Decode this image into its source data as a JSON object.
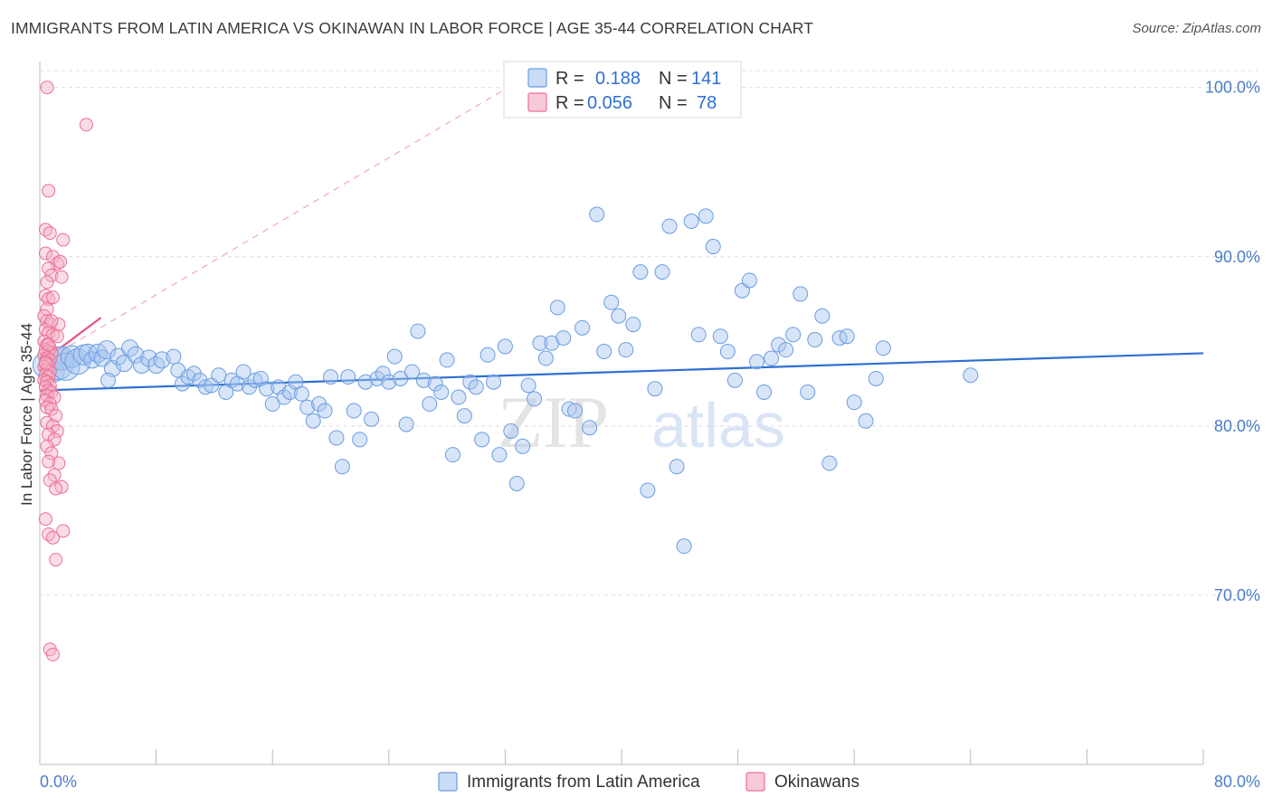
{
  "title": "IMMIGRANTS FROM LATIN AMERICA VS OKINAWAN IN LABOR FORCE | AGE 35-44 CORRELATION CHART",
  "source": "Source: ZipAtlas.com",
  "colors": {
    "blue": "#6a9de0",
    "blue_fill": "#a9c6f0",
    "blue_line": "#2f6fd1",
    "pink": "#ec6f96",
    "pink_fill": "#f4b1c6",
    "pink_line": "#e84f7f",
    "axis_text": "#4a7cc9",
    "grid": "#dcdcdc"
  },
  "legend": {
    "r_label": "R =",
    "n_label": "N =",
    "series": [
      {
        "name": "Immigrants from Latin America",
        "r": "0.188",
        "n": "141"
      },
      {
        "name": "Okinawans",
        "r": "0.056",
        "n": "78"
      }
    ]
  },
  "watermark": {
    "zip": "ZIP",
    "atlas": "atlas"
  },
  "chart_data": {
    "type": "scatter",
    "title": "IMMIGRANTS FROM LATIN AMERICA VS OKINAWAN IN LABOR FORCE | AGE 35-44 CORRELATION CHART",
    "xlabel": "",
    "ylabel": "In Labor Force | Age 35-44",
    "xlim": [
      0,
      80
    ],
    "ylim": [
      60,
      101
    ],
    "x_tick_labels": [
      "0.0%",
      "80.0%"
    ],
    "y_ticks": [
      70,
      80,
      90,
      100
    ],
    "y_tick_labels": [
      "70.0%",
      "80.0%",
      "90.0%",
      "100.0%"
    ],
    "grid": true,
    "legend_position": "top-center",
    "series": [
      {
        "name": "Immigrants from Latin America",
        "r": 0.188,
        "n": 141,
        "trend": [
          [
            0,
            82.1
          ],
          [
            80,
            84.3
          ]
        ],
        "points": [
          [
            0.4,
            83.6,
            14
          ],
          [
            0.8,
            83.9,
            12
          ],
          [
            1.0,
            83.2,
            11
          ],
          [
            1.2,
            83.7,
            18
          ],
          [
            1.5,
            84.0,
            13
          ],
          [
            1.8,
            83.5,
            15
          ],
          [
            2.2,
            84.1,
            12
          ],
          [
            2.6,
            83.8,
            14
          ],
          [
            3.0,
            84.2,
            11
          ],
          [
            3.3,
            84.3,
            10
          ],
          [
            3.6,
            83.9,
            9
          ],
          [
            4.0,
            84.3,
            10
          ],
          [
            4.3,
            84.0,
            9
          ],
          [
            4.6,
            84.5,
            10
          ],
          [
            5.0,
            83.4,
            9
          ],
          [
            5.4,
            84.1,
            9
          ],
          [
            5.8,
            83.7,
            9
          ],
          [
            6.2,
            84.6,
            9
          ],
          [
            6.6,
            84.2,
            9
          ],
          [
            7.0,
            83.6,
            9
          ],
          [
            7.5,
            84.0,
            9
          ],
          [
            8.0,
            83.6,
            9
          ],
          [
            8.4,
            83.9,
            9
          ],
          [
            9.2,
            84.1,
            8
          ],
          [
            4.7,
            82.7,
            8
          ],
          [
            9.5,
            83.3,
            8
          ],
          [
            9.8,
            82.5,
            8
          ],
          [
            10.2,
            82.9,
            8
          ],
          [
            10.6,
            83.1,
            8
          ],
          [
            11.0,
            82.7,
            8
          ],
          [
            11.4,
            82.3,
            8
          ],
          [
            11.8,
            82.4,
            8
          ],
          [
            12.3,
            83.0,
            8
          ],
          [
            12.8,
            82.0,
            8
          ],
          [
            13.2,
            82.7,
            8
          ],
          [
            13.6,
            82.5,
            8
          ],
          [
            14.0,
            83.2,
            8
          ],
          [
            14.4,
            82.3,
            8
          ],
          [
            14.8,
            82.7,
            8
          ],
          [
            15.2,
            82.8,
            8
          ],
          [
            15.6,
            82.2,
            8
          ],
          [
            16.0,
            81.3,
            8
          ],
          [
            16.4,
            82.3,
            8
          ],
          [
            16.8,
            81.7,
            8
          ],
          [
            17.2,
            82.0,
            8
          ],
          [
            17.6,
            82.6,
            8
          ],
          [
            18.0,
            81.9,
            8
          ],
          [
            18.4,
            81.1,
            8
          ],
          [
            18.8,
            80.3,
            8
          ],
          [
            19.2,
            81.3,
            8
          ],
          [
            19.6,
            80.9,
            8
          ],
          [
            20.0,
            82.9,
            8
          ],
          [
            20.4,
            79.3,
            8
          ],
          [
            20.8,
            77.6,
            8
          ],
          [
            21.2,
            82.9,
            8
          ],
          [
            21.6,
            80.9,
            8
          ],
          [
            22.0,
            79.2,
            8
          ],
          [
            22.4,
            82.6,
            8
          ],
          [
            22.8,
            80.4,
            8
          ],
          [
            23.2,
            82.8,
            8
          ],
          [
            23.6,
            83.1,
            8
          ],
          [
            24.0,
            82.6,
            8
          ],
          [
            24.4,
            84.1,
            8
          ],
          [
            24.8,
            82.8,
            8
          ],
          [
            25.2,
            80.1,
            8
          ],
          [
            25.6,
            83.2,
            8
          ],
          [
            26.0,
            85.6,
            8
          ],
          [
            26.4,
            82.7,
            8
          ],
          [
            26.8,
            81.3,
            8
          ],
          [
            27.2,
            82.5,
            8
          ],
          [
            27.6,
            82.0,
            8
          ],
          [
            28.0,
            83.9,
            8
          ],
          [
            28.4,
            78.3,
            8
          ],
          [
            28.8,
            81.7,
            8
          ],
          [
            29.2,
            80.6,
            8
          ],
          [
            29.6,
            82.6,
            8
          ],
          [
            30.0,
            82.3,
            8
          ],
          [
            30.4,
            79.2,
            8
          ],
          [
            30.8,
            84.2,
            8
          ],
          [
            31.2,
            82.6,
            8
          ],
          [
            31.6,
            78.3,
            8
          ],
          [
            32.0,
            84.7,
            8
          ],
          [
            32.4,
            79.7,
            8
          ],
          [
            32.8,
            76.6,
            8
          ],
          [
            33.2,
            78.8,
            8
          ],
          [
            33.6,
            82.4,
            8
          ],
          [
            34.0,
            81.6,
            8
          ],
          [
            34.4,
            84.9,
            8
          ],
          [
            34.8,
            84.0,
            8
          ],
          [
            35.2,
            84.9,
            8
          ],
          [
            35.6,
            87.0,
            8
          ],
          [
            36.0,
            85.2,
            8
          ],
          [
            36.4,
            81.0,
            8
          ],
          [
            36.8,
            80.9,
            8
          ],
          [
            37.3,
            85.8,
            8
          ],
          [
            37.8,
            79.9,
            8
          ],
          [
            38.3,
            92.5,
            8
          ],
          [
            38.8,
            84.4,
            8
          ],
          [
            39.3,
            87.3,
            8
          ],
          [
            39.8,
            86.5,
            8
          ],
          [
            40.3,
            84.5,
            8
          ],
          [
            40.8,
            86.0,
            8
          ],
          [
            41.3,
            89.1,
            8
          ],
          [
            41.8,
            76.2,
            8
          ],
          [
            42.3,
            82.2,
            8
          ],
          [
            42.8,
            89.1,
            8
          ],
          [
            43.3,
            91.8,
            8
          ],
          [
            43.8,
            77.6,
            8
          ],
          [
            44.3,
            72.9,
            8
          ],
          [
            44.8,
            92.1,
            8
          ],
          [
            45.3,
            85.4,
            8
          ],
          [
            45.8,
            92.4,
            8
          ],
          [
            46.3,
            90.6,
            8
          ],
          [
            46.8,
            85.3,
            8
          ],
          [
            47.3,
            84.4,
            8
          ],
          [
            47.8,
            82.7,
            8
          ],
          [
            48.3,
            88.0,
            8
          ],
          [
            48.8,
            88.6,
            8
          ],
          [
            49.3,
            83.8,
            8
          ],
          [
            49.8,
            82.0,
            8
          ],
          [
            50.3,
            84.0,
            8
          ],
          [
            50.8,
            84.8,
            8
          ],
          [
            51.3,
            84.5,
            8
          ],
          [
            51.8,
            85.4,
            8
          ],
          [
            52.3,
            87.8,
            8
          ],
          [
            52.8,
            82.0,
            8
          ],
          [
            53.3,
            85.1,
            8
          ],
          [
            53.8,
            86.5,
            8
          ],
          [
            54.3,
            77.8,
            8
          ],
          [
            55.0,
            85.2,
            8
          ],
          [
            55.5,
            85.3,
            8
          ],
          [
            56.0,
            81.4,
            8
          ],
          [
            56.8,
            80.3,
            8
          ],
          [
            57.5,
            82.8,
            8
          ],
          [
            58.0,
            84.6,
            8
          ],
          [
            64.0,
            83.0,
            8
          ]
        ]
      },
      {
        "name": "Okinawans",
        "r": 0.056,
        "n": 78,
        "trend": [
          [
            0,
            83.7
          ],
          [
            4.2,
            86.4
          ]
        ],
        "trend_ext": [
          [
            0,
            83.7
          ],
          [
            32.2,
            100.0
          ]
        ],
        "points": [
          [
            0.5,
            100.0
          ],
          [
            3.2,
            97.8
          ],
          [
            0.6,
            93.9
          ],
          [
            0.4,
            91.6
          ],
          [
            0.7,
            91.4
          ],
          [
            1.6,
            91.0
          ],
          [
            0.4,
            90.2
          ],
          [
            0.9,
            90.0
          ],
          [
            1.2,
            89.6
          ],
          [
            1.4,
            89.7
          ],
          [
            0.6,
            89.3
          ],
          [
            0.8,
            88.9
          ],
          [
            1.5,
            88.8
          ],
          [
            0.5,
            88.5
          ],
          [
            0.4,
            87.7
          ],
          [
            0.6,
            87.5
          ],
          [
            0.9,
            87.6
          ],
          [
            0.5,
            86.9
          ],
          [
            0.3,
            86.5
          ],
          [
            0.5,
            86.2
          ],
          [
            0.7,
            86.0
          ],
          [
            1.3,
            86.0
          ],
          [
            0.4,
            85.7
          ],
          [
            0.6,
            85.5
          ],
          [
            0.9,
            85.4
          ],
          [
            1.2,
            85.3
          ],
          [
            0.3,
            85.0
          ],
          [
            0.5,
            84.8
          ],
          [
            0.7,
            84.6
          ],
          [
            0.4,
            84.5
          ],
          [
            0.6,
            84.4
          ],
          [
            0.8,
            84.3
          ],
          [
            0.3,
            84.2
          ],
          [
            0.5,
            84.0
          ],
          [
            0.7,
            83.9
          ],
          [
            0.4,
            83.8
          ],
          [
            0.6,
            83.6
          ],
          [
            0.3,
            83.5
          ],
          [
            0.5,
            83.3
          ],
          [
            0.7,
            83.2
          ],
          [
            0.4,
            83.0
          ],
          [
            0.6,
            82.9
          ],
          [
            0.3,
            82.7
          ],
          [
            0.5,
            82.6
          ],
          [
            0.7,
            82.4
          ],
          [
            0.4,
            82.3
          ],
          [
            0.6,
            82.1
          ],
          [
            0.8,
            82.0
          ],
          [
            0.5,
            81.8
          ],
          [
            1.0,
            81.7
          ],
          [
            0.4,
            81.5
          ],
          [
            0.7,
            81.3
          ],
          [
            0.5,
            81.1
          ],
          [
            0.8,
            81.0
          ],
          [
            1.1,
            80.6
          ],
          [
            0.5,
            80.2
          ],
          [
            0.9,
            80.0
          ],
          [
            1.2,
            79.7
          ],
          [
            0.6,
            79.5
          ],
          [
            1.0,
            79.2
          ],
          [
            0.5,
            78.8
          ],
          [
            0.8,
            78.4
          ],
          [
            1.3,
            77.8
          ],
          [
            0.6,
            77.9
          ],
          [
            1.0,
            77.1
          ],
          [
            0.7,
            76.8
          ],
          [
            1.5,
            76.4
          ],
          [
            1.1,
            76.3
          ],
          [
            0.4,
            74.5
          ],
          [
            1.6,
            73.8
          ],
          [
            0.6,
            73.6
          ],
          [
            0.9,
            73.4
          ],
          [
            1.1,
            72.1
          ],
          [
            0.7,
            66.8
          ],
          [
            0.9,
            66.5
          ],
          [
            0.4,
            83.7
          ],
          [
            0.6,
            84.8
          ],
          [
            0.8,
            86.2
          ]
        ]
      }
    ]
  }
}
